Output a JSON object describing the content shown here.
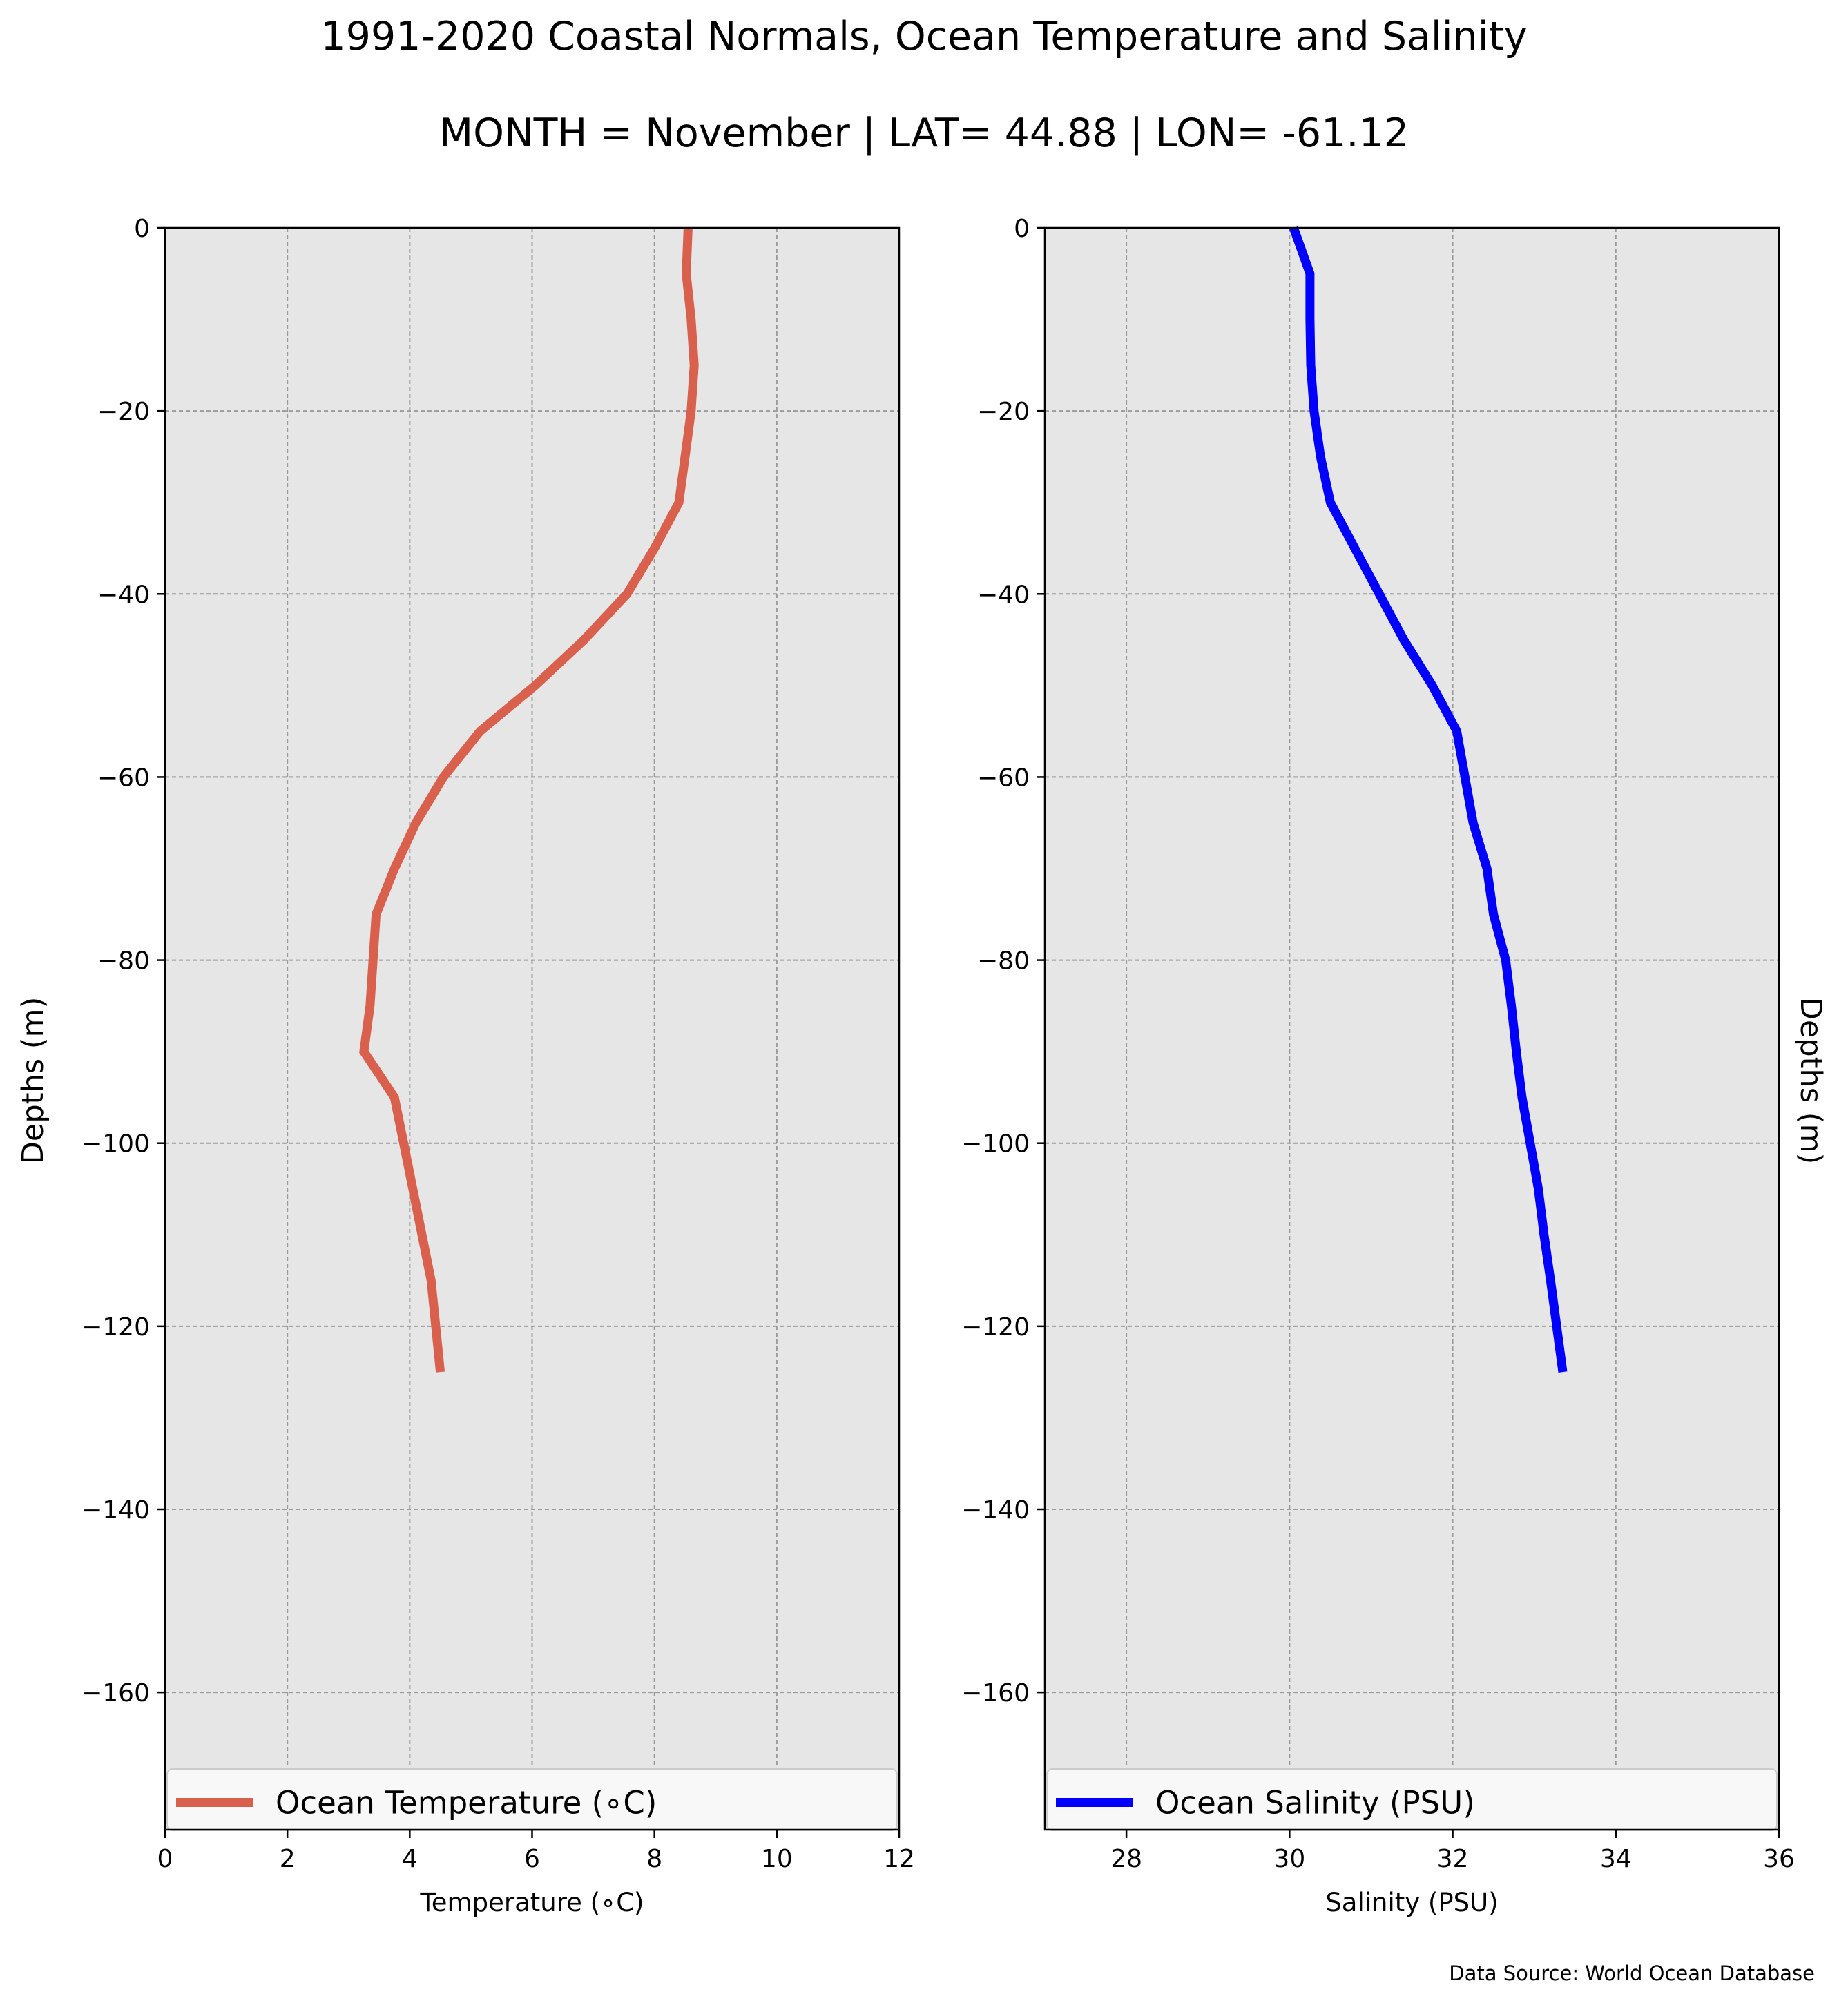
{
  "title": "1991-2020 Coastal Normals, Ocean Temperature and Salinity",
  "subtitle": "MONTH = November | LAT= 44.88 | LON= -61.12",
  "source": "Data Source: World Ocean Database",
  "colors": {
    "temperature": "#d9604c",
    "salinity": "#0000ff",
    "plot_bg": "#e6e6e6",
    "grid": "#9a9a9a"
  },
  "chart_data": [
    {
      "type": "line",
      "xlabel": "Temperature (∘C)",
      "ylabel": "Depths (m)",
      "xlim": [
        0,
        12
      ],
      "ylim": [
        -175,
        0
      ],
      "xticks": [
        0,
        2,
        4,
        6,
        8,
        10,
        12
      ],
      "yticks": [
        0,
        -20,
        -40,
        -60,
        -80,
        -100,
        -120,
        -140,
        -160
      ],
      "ytick_labels": [
        "0",
        "−20",
        "−40",
        "−60",
        "−80",
        "−100",
        "−120",
        "−140",
        "−160"
      ],
      "grid": true,
      "legend_position": "bottom",
      "series": [
        {
          "name": "Ocean Temperature (∘C)",
          "x": [
            8.55,
            8.52,
            8.6,
            8.65,
            8.6,
            8.5,
            8.4,
            8.0,
            7.55,
            6.85,
            6.05,
            5.15,
            4.55,
            4.1,
            3.75,
            3.45,
            3.4,
            3.35,
            3.25,
            3.75,
            3.9,
            4.05,
            4.2,
            4.35,
            4.5
          ],
          "y": [
            0,
            -5,
            -10,
            -15,
            -20,
            -25,
            -30,
            -35,
            -40,
            -45,
            -50,
            -55,
            -60,
            -65,
            -70,
            -75,
            -80,
            -85,
            -90,
            -95,
            -100,
            -105,
            -110,
            -115,
            -125
          ]
        }
      ]
    },
    {
      "type": "line",
      "xlabel": "Salinity (PSU)",
      "ylabel": "Depths (m)",
      "xlim": [
        27,
        36
      ],
      "ylim": [
        -175,
        0
      ],
      "xticks": [
        28,
        30,
        32,
        34,
        36
      ],
      "yticks": [
        0,
        -20,
        -40,
        -60,
        -80,
        -100,
        -120,
        -140,
        -160
      ],
      "ytick_labels": [
        "0",
        "−20",
        "−40",
        "−60",
        "−80",
        "−100",
        "−120",
        "−140",
        "−160"
      ],
      "grid": true,
      "legend_position": "bottom",
      "series": [
        {
          "name": "Ocean Salinity (PSU)",
          "x": [
            30.05,
            30.25,
            30.25,
            30.26,
            30.3,
            30.38,
            30.5,
            30.8,
            31.1,
            31.4,
            31.75,
            32.05,
            32.15,
            32.25,
            32.42,
            32.5,
            32.65,
            32.72,
            32.78,
            32.85,
            32.95,
            33.05,
            33.12,
            33.2,
            33.35
          ],
          "y": [
            0,
            -5,
            -10,
            -15,
            -20,
            -25,
            -30,
            -35,
            -40,
            -45,
            -50,
            -55,
            -60,
            -65,
            -70,
            -75,
            -80,
            -85,
            -90,
            -95,
            -100,
            -105,
            -110,
            -115,
            -125
          ]
        }
      ]
    }
  ]
}
